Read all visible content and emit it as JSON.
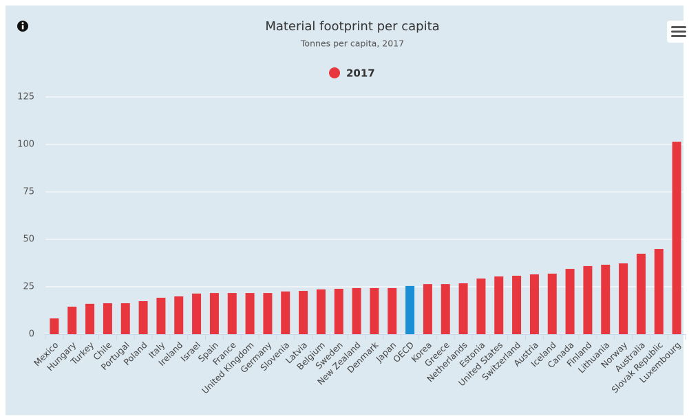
{
  "chart_data": {
    "type": "bar",
    "title": "Material footprint per capita",
    "subtitle": "Tonnes per capita, 2017",
    "categories": [
      "Mexico",
      "Hungary",
      "Turkey",
      "Chile",
      "Portugal",
      "Poland",
      "Italy",
      "Ireland",
      "Israel",
      "Spain",
      "France",
      "United Kingdom",
      "Germany",
      "Slovenia",
      "Latvia",
      "Belgium",
      "Sweden",
      "New Zealand",
      "Denmark",
      "Japan",
      "OECD",
      "Korea",
      "Greece",
      "Netherlands",
      "Estonia",
      "United States",
      "Switzerland",
      "Austria",
      "Iceland",
      "Canada",
      "Finland",
      "Lithuania",
      "Norway",
      "Australia",
      "Slovak Republic",
      "Luxembourg"
    ],
    "series": [
      {
        "name": "2017",
        "color": "#e8363f",
        "values": [
          8.3,
          14.5,
          16,
          16.3,
          16.3,
          17.4,
          19.2,
          19.9,
          21.4,
          21.7,
          21.7,
          21.7,
          21.7,
          22.5,
          22.8,
          23.6,
          23.9,
          24.3,
          24.3,
          24.3,
          25.4,
          26.4,
          26.4,
          26.8,
          29.3,
          30.4,
          30.8,
          31.5,
          31.9,
          34.4,
          35.9,
          36.6,
          37.3,
          42.4,
          44.9,
          101.4
        ],
        "colors": [
          "#e8363f",
          "#e8363f",
          "#e8363f",
          "#e8363f",
          "#e8363f",
          "#e8363f",
          "#e8363f",
          "#e8363f",
          "#e8363f",
          "#e8363f",
          "#e8363f",
          "#e8363f",
          "#e8363f",
          "#e8363f",
          "#e8363f",
          "#e8363f",
          "#e8363f",
          "#e8363f",
          "#e8363f",
          "#e8363f",
          "#1a8fd6",
          "#e8363f",
          "#e8363f",
          "#e8363f",
          "#e8363f",
          "#e8363f",
          "#e8363f",
          "#e8363f",
          "#e8363f",
          "#e8363f",
          "#e8363f",
          "#e8363f",
          "#e8363f",
          "#e8363f",
          "#e8363f",
          "#e8363f"
        ]
      }
    ],
    "ylim": [
      0,
      125
    ],
    "yticks": [
      0,
      25,
      50,
      75,
      100,
      125
    ],
    "grid": true,
    "legend": "top"
  }
}
